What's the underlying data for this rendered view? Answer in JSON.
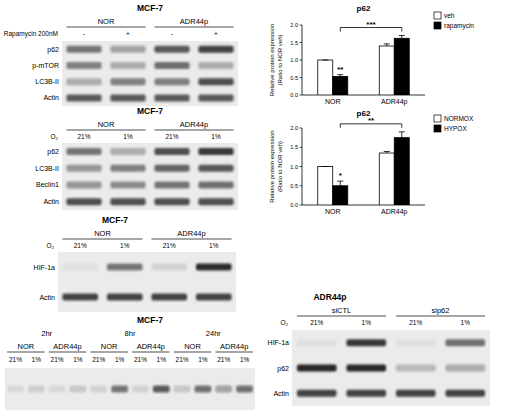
{
  "panels": [
    {
      "type": "blot",
      "title": "MCF-7",
      "groups": [
        "NOR",
        "ADR44p"
      ],
      "condition_label": "Rapamycin 200nM",
      "lanes": [
        "-",
        "+",
        "-",
        "+"
      ],
      "rows": [
        {
          "label": "p62",
          "bands": [
            0.55,
            0.35,
            0.7,
            0.8
          ]
        },
        {
          "label": "p-mTOR",
          "bands": [
            0.5,
            0.3,
            0.6,
            0.3
          ]
        },
        {
          "label": "LC3B-II",
          "bands": [
            0.3,
            0.5,
            0.5,
            0.75
          ]
        },
        {
          "label": "Actin",
          "bands": [
            0.7,
            0.7,
            0.7,
            0.7
          ]
        }
      ]
    },
    {
      "type": "blot",
      "title": "MCF-7",
      "groups": [
        "NOR",
        "ADR44p"
      ],
      "condition_label": "O₂",
      "lanes": [
        "21%",
        "1%",
        "21%",
        "1%"
      ],
      "rows": [
        {
          "label": "p62",
          "bands": [
            0.55,
            0.3,
            0.75,
            0.85
          ]
        },
        {
          "label": "LC3B-II",
          "bands": [
            0.4,
            0.5,
            0.65,
            0.7
          ]
        },
        {
          "label": "Beclin1",
          "bands": [
            0.4,
            0.45,
            0.55,
            0.6
          ]
        },
        {
          "label": "Actin",
          "bands": [
            0.75,
            0.75,
            0.75,
            0.75
          ]
        }
      ]
    },
    {
      "type": "blot",
      "title": "MCF-7",
      "groups": [
        "NOR",
        "ADR44p"
      ],
      "condition_label": "O₂",
      "lanes": [
        "21%",
        "1%",
        "21%",
        "1%"
      ],
      "rows": [
        {
          "label": "HIF-1a",
          "bands": [
            0.05,
            0.55,
            0.1,
            0.9
          ]
        },
        {
          "label": "Actin",
          "bands": [
            0.8,
            0.8,
            0.8,
            0.8
          ]
        }
      ]
    },
    {
      "type": "blot",
      "title": "ADR44p",
      "groups": [
        "siCTL",
        "sip62"
      ],
      "condition_label": "O₂",
      "lanes": [
        "21%",
        "1%",
        "21%",
        "1%"
      ],
      "rows": [
        {
          "label": "HIF-1a",
          "bands": [
            0.05,
            0.85,
            0.05,
            0.6
          ]
        },
        {
          "label": "p62",
          "bands": [
            0.95,
            0.95,
            0.25,
            0.3
          ]
        },
        {
          "label": "Actin",
          "bands": [
            0.8,
            0.8,
            0.8,
            0.8
          ]
        }
      ]
    },
    {
      "type": "blot",
      "title": "MCF-7",
      "time_groups": [
        "2hr",
        "8hr",
        "24hr"
      ],
      "groups": [
        "NOR",
        "ADR44p"
      ],
      "lanes": [
        "21%",
        "1%",
        "21%",
        "1%"
      ],
      "rows": [
        {
          "bands": [
            0.08,
            0.12,
            0.08,
            0.15,
            0.1,
            0.55,
            0.1,
            0.7,
            0.15,
            0.6,
            0.35,
            0.6
          ]
        }
      ]
    }
  ],
  "chart_data": [
    {
      "type": "bar",
      "title": "p62",
      "y_label": [
        "Relative protein expression",
        "(Ratio to NOR veh)"
      ],
      "categories": [
        "NOR",
        "ADR44p"
      ],
      "series": [
        {
          "name": "veh",
          "color": "#ffffff",
          "values": [
            1.0,
            1.4
          ],
          "errors": [
            0,
            0.06
          ]
        },
        {
          "name": "rapamycin",
          "color": "#000000",
          "values": [
            0.53,
            1.62
          ],
          "errors": [
            0.05,
            0.08
          ]
        }
      ],
      "ylim": [
        0,
        2
      ],
      "yticks": [
        {
          "value": 0,
          "label": "0.0"
        },
        0.5,
        {
          "value": 1,
          "label": "1.0"
        },
        1.5,
        {
          "value": 2,
          "label": "2.0"
        }
      ],
      "legend": "top-right",
      "annotations": [
        {
          "text": "**",
          "category": 0,
          "series": 1
        },
        {
          "text": "***",
          "bracket": [
            [
              0,
              1
            ],
            [
              1,
              1
            ]
          ]
        }
      ]
    },
    {
      "type": "bar",
      "title": "p62",
      "y_label": [
        "Relative protein expression",
        "(Ratio to NOR veh)"
      ],
      "categories": [
        "NOR",
        "ADR44p"
      ],
      "series": [
        {
          "name": "NORMOX",
          "color": "#ffffff",
          "values": [
            1.0,
            1.35
          ],
          "errors": [
            0,
            0.04
          ]
        },
        {
          "name": "HYPOX",
          "color": "#000000",
          "values": [
            0.5,
            1.75
          ],
          "errors": [
            0.12,
            0.15
          ]
        }
      ],
      "ylim": [
        0,
        2
      ],
      "yticks": [
        {
          "value": 0,
          "label": "0.0"
        },
        0.5,
        {
          "value": 1,
          "label": "1.0"
        },
        1.5,
        {
          "value": 2,
          "label": "2.0"
        }
      ],
      "legend": "top-right",
      "annotations": [
        {
          "text": "*",
          "category": 0,
          "series": 1
        },
        {
          "text": "**",
          "bracket": [
            [
              0,
              1
            ],
            [
              1,
              1
            ]
          ]
        }
      ]
    }
  ]
}
